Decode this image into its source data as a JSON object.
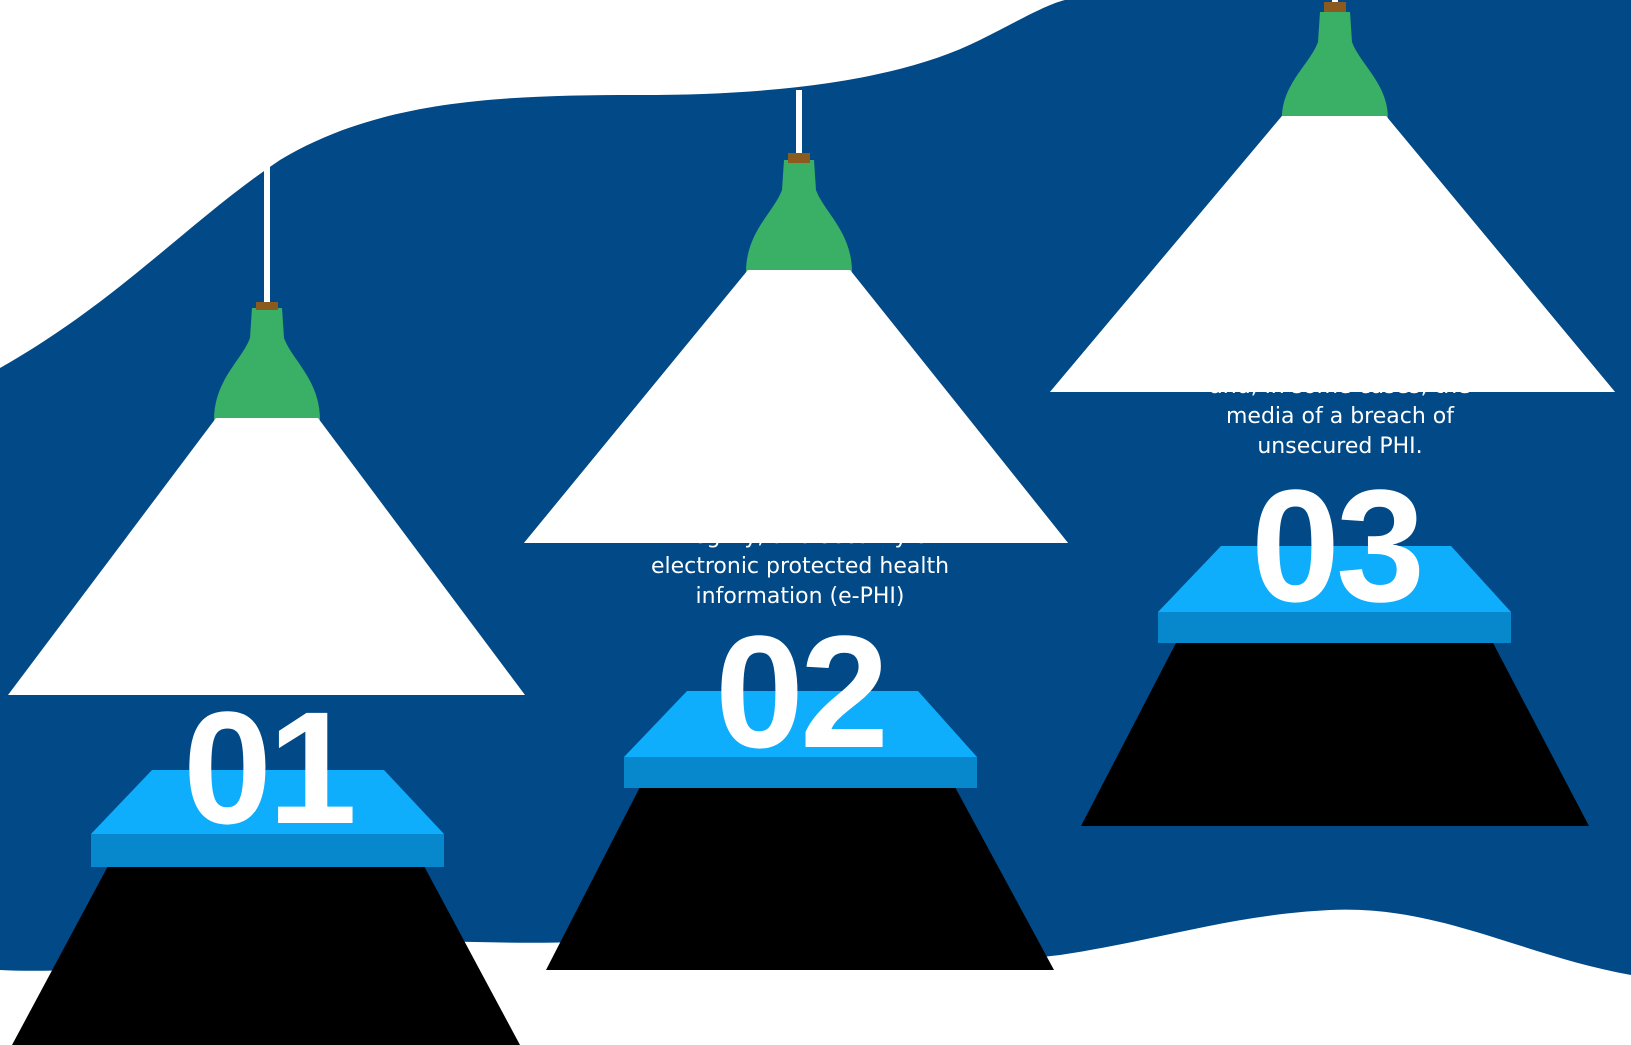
{
  "colors": {
    "background_band": "#014a87",
    "page_white": "#ffffff",
    "lamp_socket": "#3aaf66",
    "lamp_cap_top": "#8a5a1e",
    "lamp_shade": "#ffffff",
    "platform_top": "#0eaefc",
    "platform_front": "#0788cd",
    "platform_shadow": "#000000"
  },
  "steps": [
    {
      "number": "01",
      "caption": ""
    },
    {
      "number": "02",
      "caption": "integrity, and security of\nelectronic protected health\ninformation (e-PHI)"
    },
    {
      "number": "03",
      "caption": "and, in some cases, the\nmedia of a breach of\nunsecured PHI."
    }
  ],
  "icons": {
    "lamp": "pendant-lamp-icon",
    "platform": "pedestal-icon"
  }
}
